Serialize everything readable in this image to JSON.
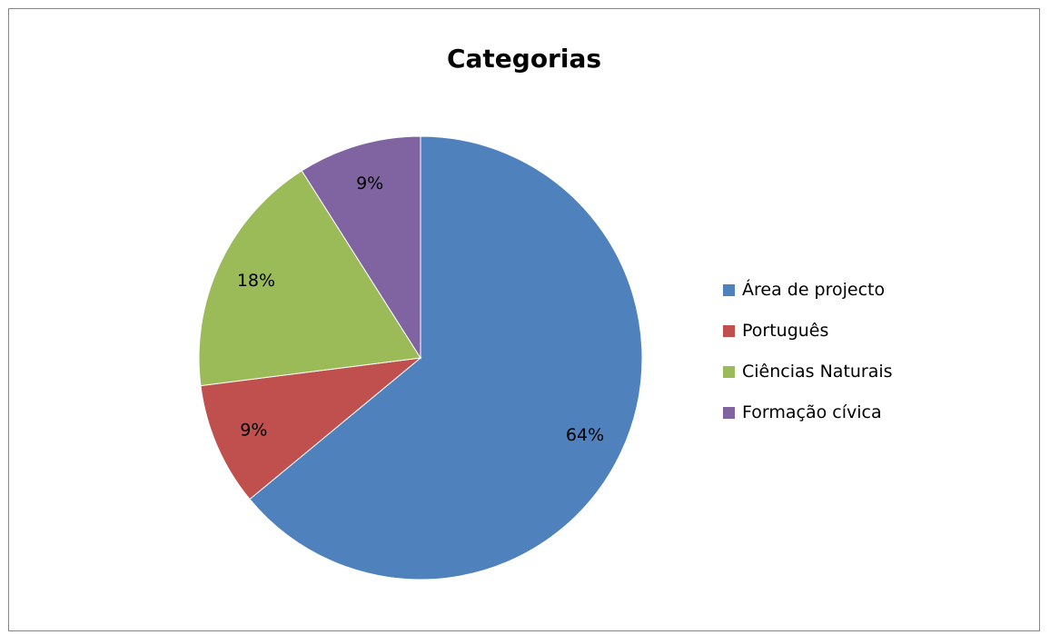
{
  "chart_data": {
    "type": "pie",
    "title": "Categorias",
    "categories": [
      "Área de projecto",
      "Português",
      "Ciências Naturais",
      "Formação cívica"
    ],
    "values": [
      64,
      9,
      18,
      9
    ],
    "labels": [
      "64%",
      "9%",
      "18%",
      "9%"
    ],
    "colors": [
      "#4F81BD",
      "#C0504D",
      "#9BBB59",
      "#8064A2"
    ],
    "legend_position": "right"
  }
}
